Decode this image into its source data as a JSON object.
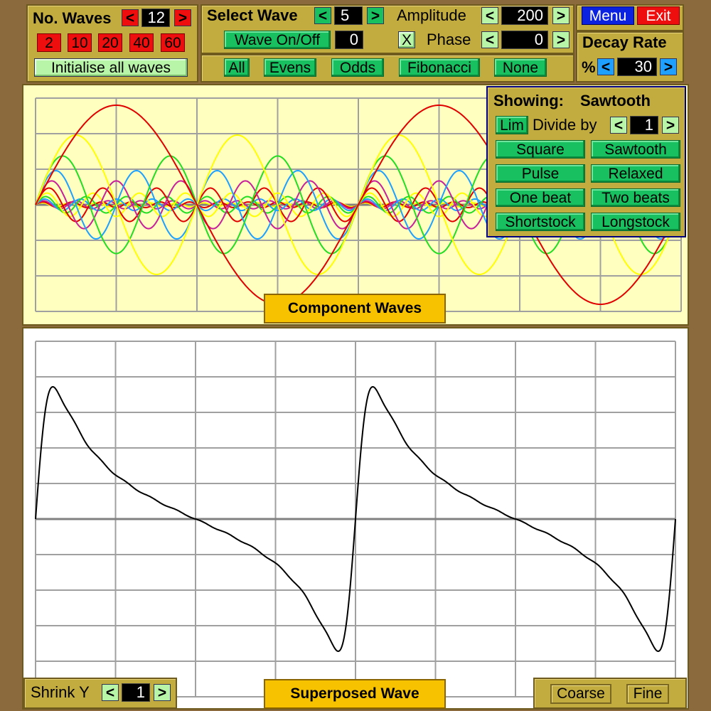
{
  "waves_panel": {
    "label": "No. Waves",
    "count": "12",
    "presets": [
      "2",
      "10",
      "20",
      "40",
      "60"
    ],
    "init_label": "Initialise all waves"
  },
  "select_panel": {
    "select_label": "Select Wave",
    "select_value": "5",
    "onoff_label": "Wave On/Off",
    "onoff_value": "0",
    "x_label": "X",
    "amplitude_label": "Amplitude",
    "amplitude_value": "200",
    "phase_label": "Phase",
    "phase_value": "0",
    "filters": [
      "All",
      "Evens",
      "Odds",
      "Fibonacci",
      "None"
    ]
  },
  "menu_panel": {
    "menu_label": "Menu",
    "exit_label": "Exit"
  },
  "decay_panel": {
    "label": "Decay Rate",
    "percent": "%",
    "value": "30"
  },
  "arrows": {
    "left": "<",
    "right": ">"
  },
  "showing_panel": {
    "showing_label": "Showing:",
    "showing_value": "Sawtooth",
    "lim_label": "Lim",
    "divide_label": "Divide by",
    "divide_value": "1",
    "presets": [
      "Square",
      "Sawtooth",
      "Pulse",
      "Relaxed",
      "One beat",
      "Two beats",
      "Shortstock",
      "Longstock"
    ]
  },
  "component_title": "Component Waves",
  "superposed_title": "Superposed Wave",
  "shrink": {
    "label": "Shrink Y",
    "value": "1"
  },
  "resolution": {
    "coarse_label": "Coarse",
    "fine_label": "Fine"
  },
  "colors": {
    "harmonic1": "#e00000",
    "harmonic2": "#ffff00",
    "harmonic3": "#22dd22",
    "harmonic4": "#1ea0ff",
    "harmonic5": "#c8209a",
    "superposed": "#000000"
  },
  "wave_settings": {
    "shape": "sawtooth",
    "num_waves": 12,
    "fundamental_amplitude": 200,
    "decay_percent": 30,
    "periods_shown": 2
  }
}
